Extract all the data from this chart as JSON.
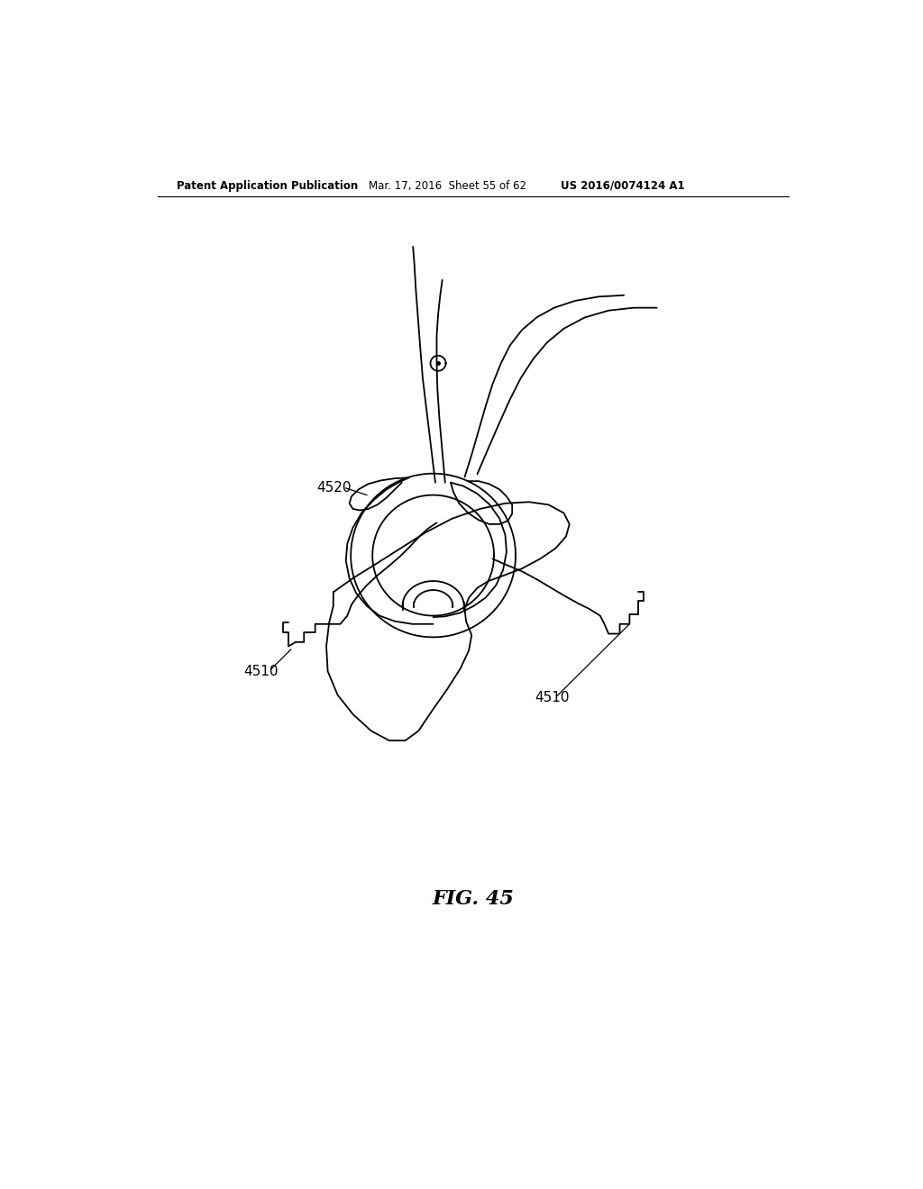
{
  "bg_color": "#ffffff",
  "line_color": "#000000",
  "lw": 1.3,
  "header_left": "Patent Application Publication",
  "header_mid": "Mar. 17, 2016  Sheet 55 of 62",
  "header_right": "US 2016/0074124 A1",
  "fig_label": "FIG. 45",
  "label_4520": "4520",
  "label_4510_left": "4510",
  "label_4510_right": "4510"
}
